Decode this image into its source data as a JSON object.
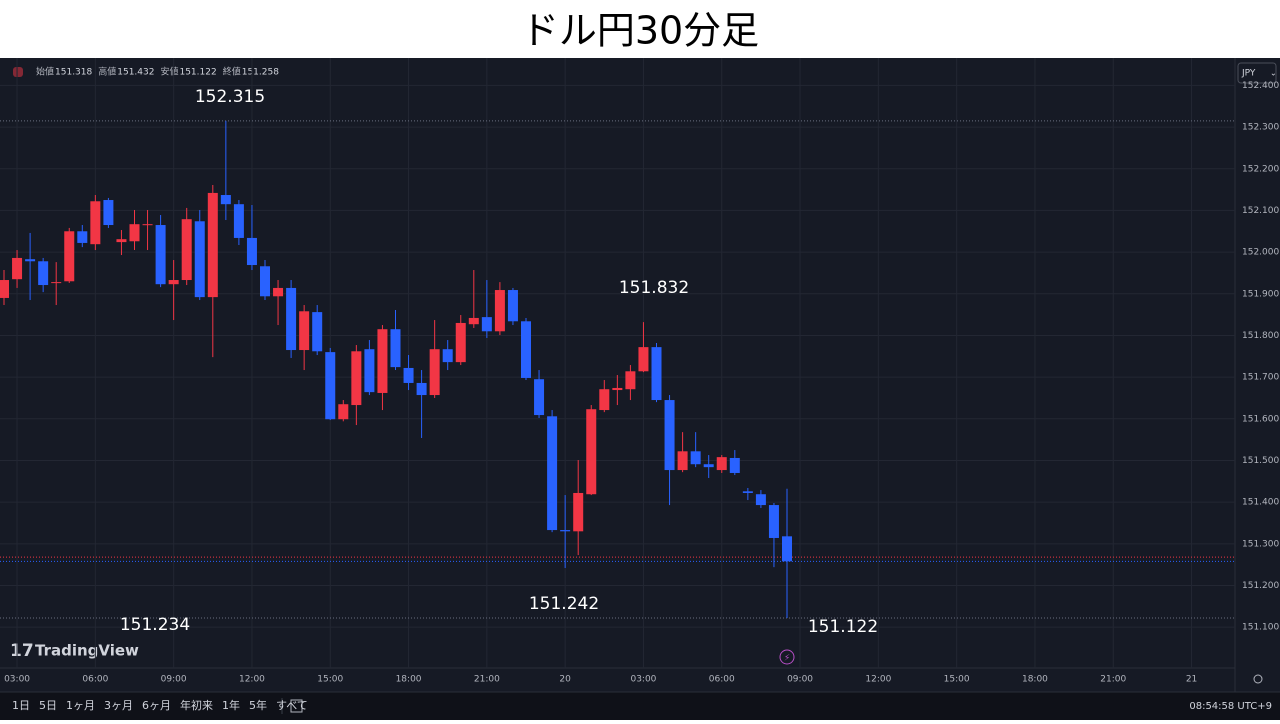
{
  "chart_data": {
    "type": "candlestick",
    "title": "ドル円30分足",
    "ohlc_legend": [
      {
        "label": "始値",
        "value": 151.318
      },
      {
        "label": "高値",
        "value": 151.432
      },
      {
        "label": "安値",
        "value": 151.122
      },
      {
        "label": "終値",
        "value": 151.258
      }
    ],
    "currency": "JPY",
    "categories": [
      null,
      "03:00",
      null,
      null,
      null,
      null,
      null,
      "06:00",
      null,
      null,
      null,
      null,
      null,
      "09:00",
      null,
      null,
      null,
      null,
      null,
      "12:00",
      null,
      null,
      null,
      null,
      null,
      "15:00",
      null,
      null,
      null,
      null,
      null,
      "18:00",
      null,
      null,
      null,
      null,
      null,
      "21:00",
      null,
      null,
      null,
      null,
      null,
      "20",
      null,
      null,
      null,
      null,
      null,
      "03:00",
      null,
      null,
      null,
      null,
      null,
      "06:00",
      null,
      null,
      null,
      null,
      null
    ],
    "future_xticks": [
      "09:00",
      "12:00",
      "15:00",
      "18:00",
      "21:00",
      "21"
    ],
    "open": [
      151.89,
      151.935,
      151.983,
      151.978,
      151.926,
      151.93,
      152.05,
      152.019,
      152.125,
      152.024,
      152.026,
      152.065,
      152.065,
      151.923,
      151.933,
      152.074,
      151.892,
      152.137,
      152.115,
      152.034,
      151.966,
      151.894,
      151.914,
      151.765,
      151.856,
      151.76,
      151.599,
      151.633,
      151.767,
      151.662,
      151.815,
      151.722,
      151.686,
      151.657,
      151.767,
      151.736,
      151.827,
      151.844,
      151.81,
      151.909,
      151.834,
      151.695,
      151.606,
      151.333,
      151.33,
      151.419,
      151.621,
      151.669,
      151.671,
      151.714,
      151.772,
      151.645,
      151.477,
      151.522,
      151.491,
      151.477,
      151.506,
      151.426,
      151.419,
      151.393,
      151.318
    ],
    "high": [
      151.957,
      152.005,
      152.046,
      151.986,
      151.976,
      152.058,
      152.065,
      152.137,
      152.13,
      152.053,
      152.101,
      152.101,
      152.089,
      151.981,
      152.106,
      152.101,
      152.161,
      152.315,
      152.125,
      152.113,
      151.981,
      151.933,
      151.933,
      151.873,
      151.873,
      151.77,
      151.645,
      151.777,
      151.789,
      151.825,
      151.861,
      151.753,
      151.717,
      151.837,
      151.789,
      151.849,
      151.957,
      151.933,
      151.928,
      151.914,
      151.842,
      151.717,
      151.621,
      151.417,
      151.501,
      151.633,
      151.693,
      151.705,
      151.729,
      151.832,
      151.782,
      151.657,
      151.568,
      151.568,
      151.513,
      151.513,
      151.525,
      151.434,
      151.429,
      151.398,
      151.432
    ],
    "low": [
      151.873,
      151.914,
      151.885,
      151.904,
      151.873,
      151.926,
      152.012,
      152.005,
      152.058,
      151.993,
      152.005,
      152.005,
      151.916,
      151.837,
      151.921,
      151.885,
      151.748,
      152.077,
      152.017,
      151.957,
      151.885,
      151.825,
      151.746,
      151.717,
      151.753,
      151.597,
      151.594,
      151.585,
      151.657,
      151.621,
      151.717,
      151.669,
      151.554,
      151.65,
      151.717,
      151.729,
      151.818,
      151.794,
      151.801,
      151.825,
      151.693,
      151.602,
      151.328,
      151.242,
      151.273,
      151.417,
      151.616,
      151.633,
      151.645,
      151.712,
      151.64,
      151.393,
      151.472,
      151.484,
      151.458,
      151.47,
      151.465,
      151.405,
      151.386,
      151.244,
      151.122
    ],
    "close": [
      151.933,
      151.986,
      151.978,
      151.921,
      151.928,
      152.05,
      152.022,
      152.122,
      152.065,
      152.031,
      152.067,
      152.067,
      151.923,
      151.933,
      152.079,
      151.892,
      152.142,
      152.115,
      152.034,
      151.969,
      151.894,
      151.914,
      151.765,
      151.858,
      151.762,
      151.599,
      151.635,
      151.762,
      151.664,
      151.815,
      151.724,
      151.686,
      151.657,
      151.767,
      151.736,
      151.83,
      151.842,
      151.81,
      151.909,
      151.834,
      151.698,
      151.609,
      151.333,
      151.33,
      151.422,
      151.623,
      151.671,
      151.674,
      151.714,
      151.772,
      151.645,
      151.477,
      151.522,
      151.491,
      151.484,
      151.508,
      151.47,
      151.422,
      151.393,
      151.314,
      151.258
    ],
    "up_color": "#f23645",
    "down_color": "#2962ff",
    "ylim": [
      151.002,
      152.461
    ],
    "yticks": [
      {
        "value": 152.4,
        "label": "152.400"
      },
      {
        "value": 152.3,
        "label": "152.300"
      },
      {
        "value": 152.2,
        "label": "152.200"
      },
      {
        "value": 152.1,
        "label": "152.100"
      },
      {
        "value": 152.0,
        "label": "152.000"
      },
      {
        "value": 151.9,
        "label": "151.900"
      },
      {
        "value": 151.8,
        "label": "151.800"
      },
      {
        "value": 151.7,
        "label": "151.700"
      },
      {
        "value": 151.6,
        "label": "151.600"
      },
      {
        "value": 151.5,
        "label": "151.500"
      },
      {
        "value": 151.4,
        "label": "151.400"
      },
      {
        "value": 151.3,
        "label": "151.300"
      },
      {
        "value": 151.2,
        "label": "151.200"
      },
      {
        "value": 151.1,
        "label": "151.100"
      }
    ],
    "grid": true,
    "hlines": [
      {
        "value": 152.315,
        "color": "#6a6f80",
        "style": "dotted"
      },
      {
        "value": 151.122,
        "color": "#6a6f80",
        "style": "dotted"
      },
      {
        "value": 151.268,
        "color": "#f23645",
        "style": "dotted"
      },
      {
        "value": 151.258,
        "color": "#2962ff",
        "style": "dotted"
      }
    ],
    "annotations": [
      "152.315",
      "151.832",
      "151.242",
      "151.234",
      "151.122"
    ],
    "brand": "TradingView",
    "ranges": [
      "1日",
      "5日",
      "1ヶ月",
      "3ヶ月",
      "6ヶ月",
      "年初来",
      "1年",
      "5年",
      "すべて"
    ],
    "clock": "08:54:58 UTC+9"
  }
}
